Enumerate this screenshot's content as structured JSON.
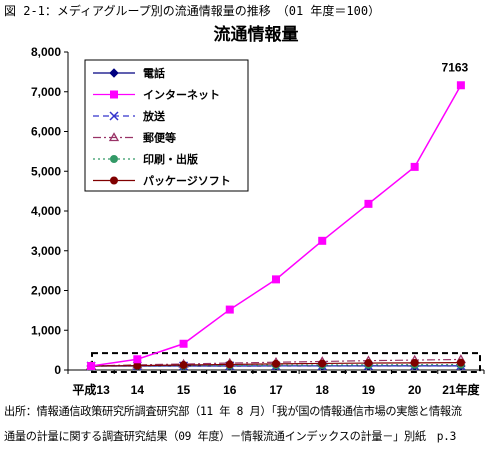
{
  "figure": {
    "caption": "図 2-1：メディアグループ別の流通情報量の推移　（01 年度＝100）",
    "source_line1": "出所：情報通信政策研究所調査研究部（11 年 8 月）「我が国の情報通信市場の実態と情報流",
    "source_line2": "通量の計量に関する調査研究結果（09 年度）－情報流通インデックスの計量－」別紙　p.3"
  },
  "chart_data": {
    "type": "line",
    "title": "流通情報量",
    "categories": [
      "平成13",
      "14",
      "15",
      "16",
      "17",
      "18",
      "19",
      "20",
      "21年度"
    ],
    "ylim": [
      0,
      8000
    ],
    "yticks": [
      "0",
      "1,000",
      "2,000",
      "3,000",
      "4,000",
      "5,000",
      "6,000",
      "7,000",
      "8,000"
    ],
    "grid": false,
    "legend_position": "top-left",
    "series": [
      {
        "name": "電話",
        "color": "#000080",
        "marker": "diamond",
        "dash": "solid",
        "values": [
          100,
          100,
          101,
          101,
          102,
          102,
          102,
          102,
          102
        ]
      },
      {
        "name": "インターネット",
        "color": "#ff00ff",
        "marker": "square",
        "dash": "solid",
        "values": [
          100,
          270,
          660,
          1520,
          2280,
          3250,
          4180,
          5110,
          7163
        ]
      },
      {
        "name": "放送",
        "color": "#3333cc",
        "marker": "x",
        "dash": "dashed",
        "values": [
          100,
          101,
          102,
          103,
          104,
          105,
          106,
          107,
          108
        ]
      },
      {
        "name": "郵便等",
        "color": "#993366",
        "marker": "triangle",
        "dash": "dashdot",
        "values": [
          100,
          130,
          150,
          175,
          195,
          215,
          235,
          250,
          265
        ]
      },
      {
        "name": "印刷・出版",
        "color": "#339966",
        "marker": "circle",
        "dash": "dotted",
        "values": [
          100,
          105,
          110,
          115,
          120,
          125,
          130,
          132,
          135
        ]
      },
      {
        "name": "パッケージソフト",
        "color": "#800000",
        "marker": "circle",
        "dash": "solid",
        "values": [
          100,
          110,
          125,
          140,
          155,
          165,
          175,
          180,
          185
        ]
      }
    ],
    "annotations": [
      {
        "text": "7163",
        "category": "21年度",
        "value": 7163
      }
    ],
    "highlight_box": {
      "ymin": 0,
      "ymax": 500,
      "style": "dashed"
    }
  }
}
